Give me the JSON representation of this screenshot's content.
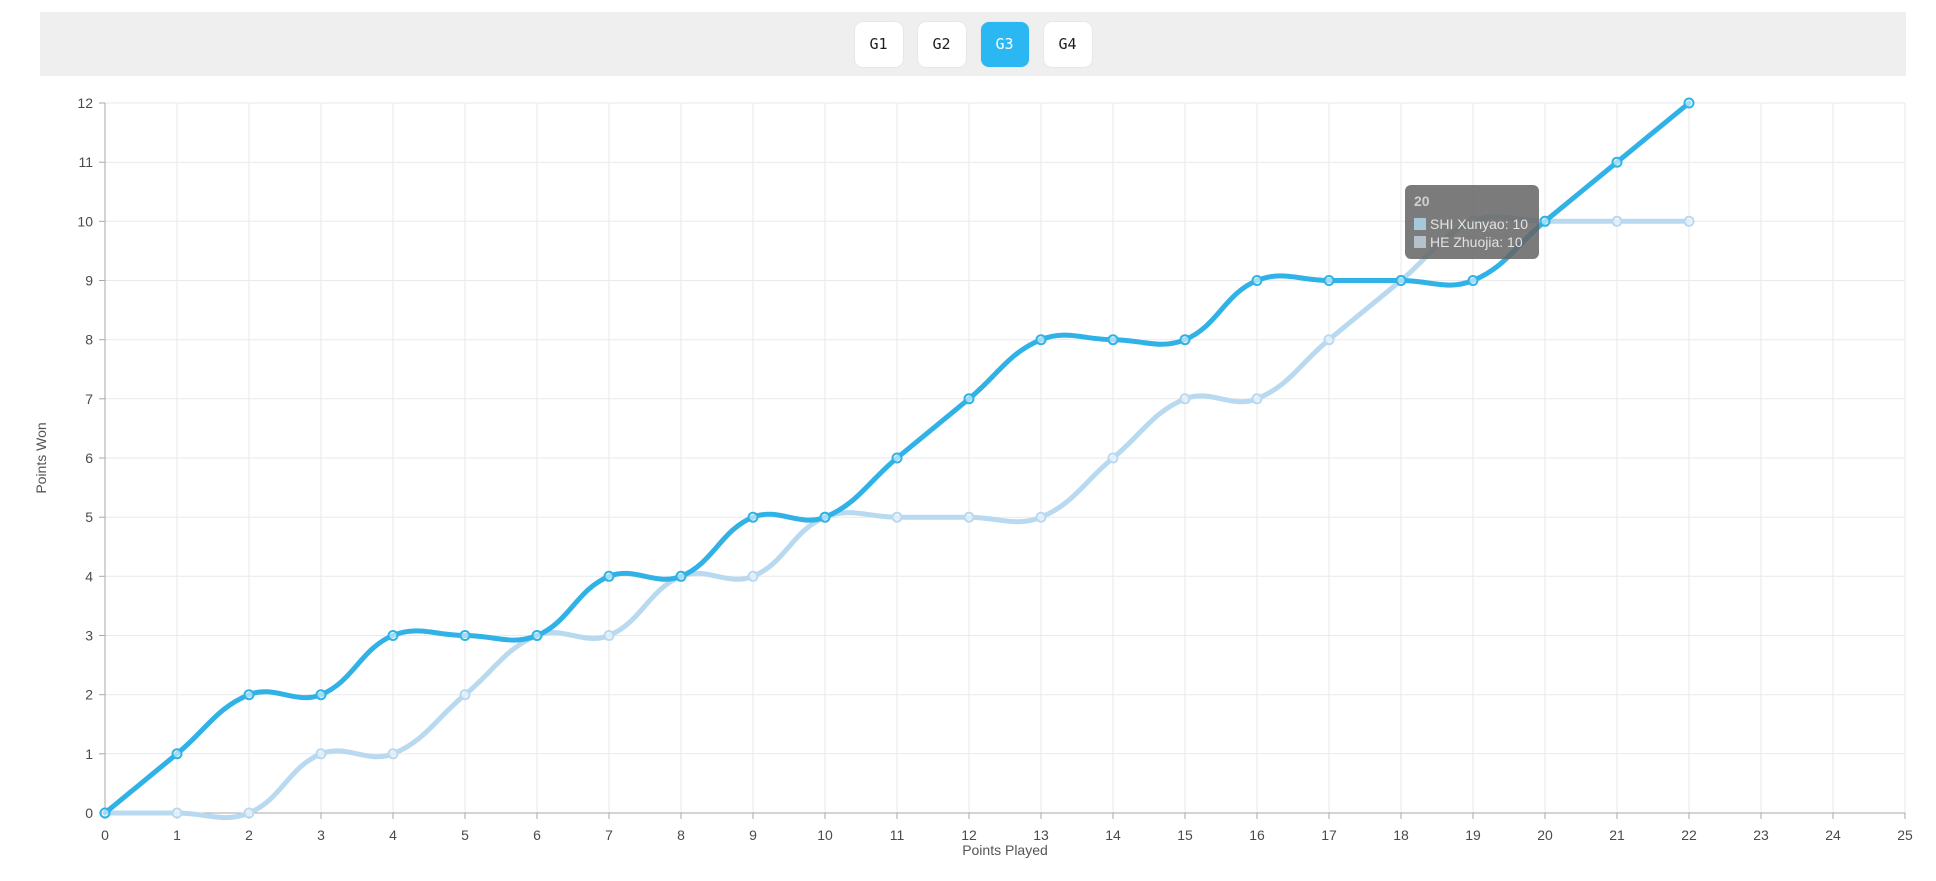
{
  "header": {
    "tabs": [
      {
        "id": "g1",
        "label": "G1",
        "active": false
      },
      {
        "id": "g2",
        "label": "G2",
        "active": false
      },
      {
        "id": "g3",
        "label": "G3",
        "active": true
      },
      {
        "id": "g4",
        "label": "G4",
        "active": false
      }
    ],
    "active_tab_color": "#2bb8f2",
    "bar_color": "#efefef"
  },
  "chart_data": {
    "type": "line",
    "title": "",
    "xlabel": "Points Played",
    "ylabel": "Points Won",
    "x": [
      0,
      1,
      2,
      3,
      4,
      5,
      6,
      7,
      8,
      9,
      10,
      11,
      12,
      13,
      14,
      15,
      16,
      17,
      18,
      19,
      20,
      21,
      22
    ],
    "series": [
      {
        "name": "SHI Xunyao",
        "color": "#31b2e7",
        "values": [
          0,
          1,
          2,
          2,
          3,
          3,
          3,
          4,
          4,
          5,
          5,
          6,
          7,
          8,
          8,
          8,
          9,
          9,
          9,
          9,
          10,
          11,
          12
        ]
      },
      {
        "name": "HE Zhuojia",
        "color": "#b9d9f0",
        "values": [
          0,
          0,
          0,
          1,
          1,
          2,
          3,
          3,
          4,
          4,
          5,
          5,
          5,
          5,
          6,
          7,
          7,
          8,
          9,
          10,
          10,
          10,
          10
        ]
      }
    ],
    "xlim": [
      0,
      25
    ],
    "ylim": [
      0,
      12
    ],
    "x_ticks": [
      0,
      1,
      2,
      3,
      4,
      5,
      6,
      7,
      8,
      9,
      10,
      11,
      12,
      13,
      14,
      15,
      16,
      17,
      18,
      19,
      20,
      21,
      22,
      23,
      24,
      25
    ],
    "y_ticks": [
      0,
      1,
      2,
      3,
      4,
      5,
      6,
      7,
      8,
      9,
      10,
      11,
      12
    ],
    "grid": true,
    "legend_position": "none",
    "colors": {
      "grid": "#e9e9e9",
      "axis": "#a8a8a8",
      "tick_text": "#4b4b4b",
      "axis_title": "#555555"
    },
    "tooltip": {
      "title": "20",
      "anchor": {
        "x": 20,
        "y": 10
      },
      "rows": [
        {
          "label": "SHI Xunyao: 10",
          "box_color": "#a5c9db"
        },
        {
          "label": "HE Zhuojia: 10",
          "box_color": "#b4c3cb"
        }
      ]
    }
  }
}
